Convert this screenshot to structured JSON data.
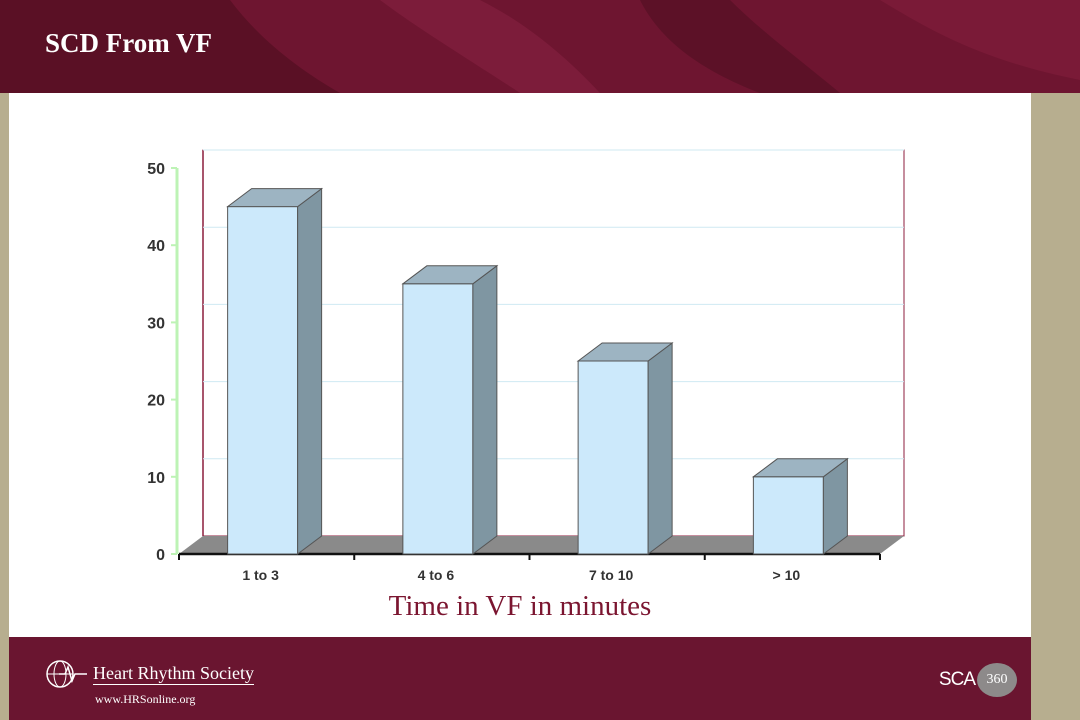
{
  "slide": {
    "title": "SCD From VF"
  },
  "footer": {
    "org_name": "Heart Rhythm Society",
    "url": "www.HRSonline.org",
    "partner_logo_text": "SCA",
    "partner_logo_number": "360"
  },
  "colors": {
    "header": "#6e1530",
    "bar_front": "#cce9fb",
    "bar_side": "#7f96a2",
    "bar_top": "#9db4c2",
    "floor": "#8a8a8a",
    "axis_title": "#7b1530"
  },
  "chart_data": {
    "type": "bar",
    "categories": [
      "1 to 3",
      "4 to 6",
      "7 to 10",
      "> 10"
    ],
    "values": [
      45,
      35,
      25,
      10
    ],
    "title": "",
    "xlabel": "Time in VF in minutes",
    "ylabel": "",
    "ylim": [
      0,
      50
    ],
    "yticks": [
      0,
      10,
      20,
      30,
      40,
      50
    ],
    "grid": true,
    "legend": "none",
    "style": "3d-column"
  }
}
